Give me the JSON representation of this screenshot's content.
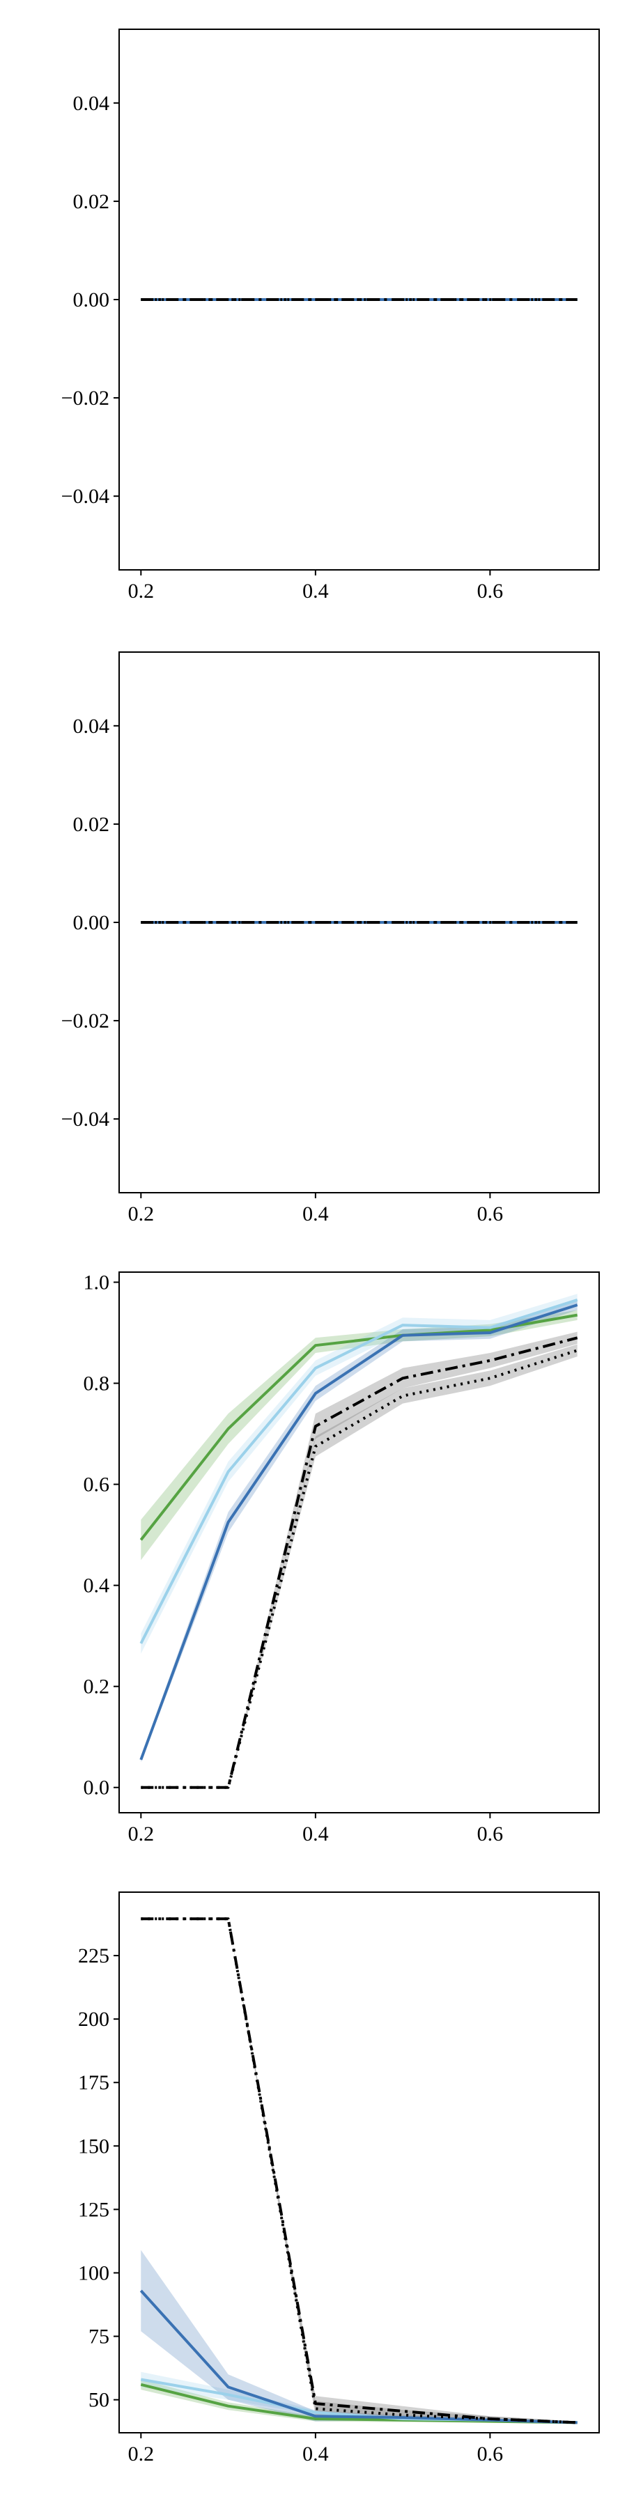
{
  "chart_data": [
    {
      "type": "line",
      "title": "",
      "xlabel": "",
      "ylabel": "",
      "grid": false,
      "legend": "none",
      "x": [
        0.2,
        0.3,
        0.4,
        0.5,
        0.6,
        0.7
      ],
      "xlim": [
        0.175,
        0.725
      ],
      "ylim": [
        -0.055,
        0.055
      ],
      "xticks": [
        0.2,
        0.4,
        0.6
      ],
      "xtick_labels": [
        "0.2",
        "0.4",
        "0.6"
      ],
      "yticks": [
        -0.04,
        -0.02,
        0.0,
        0.02,
        0.04
      ],
      "ytick_labels": [
        "−0.04",
        "−0.02",
        "0.00",
        "0.02",
        "0.04"
      ],
      "series": [
        {
          "color": "#56a343",
          "style": "solid",
          "values": [
            0,
            0,
            0,
            0,
            0,
            0
          ],
          "band": [
            0,
            0,
            0,
            0,
            0,
            0
          ]
        },
        {
          "color": "#9bd1ea",
          "style": "solid",
          "values": [
            0,
            0,
            0,
            0,
            0,
            0
          ],
          "band": [
            0,
            0,
            0,
            0,
            0,
            0
          ]
        },
        {
          "color": "#3a72b3",
          "style": "solid",
          "values": [
            0,
            0,
            0,
            0,
            0,
            0
          ],
          "band": [
            0,
            0,
            0,
            0,
            0,
            0
          ]
        },
        {
          "color": "#000000",
          "style": "dotted",
          "values": [
            0,
            0,
            0,
            0,
            0,
            0
          ],
          "band": [
            0,
            0,
            0,
            0,
            0,
            0
          ]
        },
        {
          "color": "#000000",
          "style": "dashdot",
          "values": [
            0,
            0,
            0,
            0,
            0,
            0
          ],
          "band": [
            0,
            0,
            0,
            0,
            0,
            0
          ]
        }
      ]
    },
    {
      "type": "line",
      "title": "",
      "xlabel": "",
      "ylabel": "",
      "grid": false,
      "legend": "none",
      "x": [
        0.2,
        0.3,
        0.4,
        0.5,
        0.6,
        0.7
      ],
      "xlim": [
        0.175,
        0.725
      ],
      "ylim": [
        -0.055,
        0.055
      ],
      "xticks": [
        0.2,
        0.4,
        0.6
      ],
      "xtick_labels": [
        "0.2",
        "0.4",
        "0.6"
      ],
      "yticks": [
        -0.04,
        -0.02,
        0.0,
        0.02,
        0.04
      ],
      "ytick_labels": [
        "−0.04",
        "−0.02",
        "0.00",
        "0.02",
        "0.04"
      ],
      "series": [
        {
          "color": "#56a343",
          "style": "solid",
          "values": [
            0,
            0,
            0,
            0,
            0,
            0
          ],
          "band": [
            0,
            0,
            0,
            0,
            0,
            0
          ]
        },
        {
          "color": "#9bd1ea",
          "style": "solid",
          "values": [
            0,
            0,
            0,
            0,
            0,
            0
          ],
          "band": [
            0,
            0,
            0,
            0,
            0,
            0
          ]
        },
        {
          "color": "#3a72b3",
          "style": "solid",
          "values": [
            0,
            0,
            0,
            0,
            0,
            0
          ],
          "band": [
            0,
            0,
            0,
            0,
            0,
            0
          ]
        },
        {
          "color": "#000000",
          "style": "dotted",
          "values": [
            0,
            0,
            0,
            0,
            0,
            0
          ],
          "band": [
            0,
            0,
            0,
            0,
            0,
            0
          ]
        },
        {
          "color": "#000000",
          "style": "dashdot",
          "values": [
            0,
            0,
            0,
            0,
            0,
            0
          ],
          "band": [
            0,
            0,
            0,
            0,
            0,
            0
          ]
        }
      ]
    },
    {
      "type": "line",
      "title": "",
      "xlabel": "",
      "ylabel": "",
      "grid": false,
      "legend": "none",
      "x": [
        0.2,
        0.3,
        0.4,
        0.5,
        0.6,
        0.7
      ],
      "xlim": [
        0.175,
        0.725
      ],
      "ylim": [
        -0.05,
        1.02
      ],
      "xticks": [
        0.2,
        0.4,
        0.6
      ],
      "xtick_labels": [
        "0.2",
        "0.4",
        "0.6"
      ],
      "yticks": [
        0.0,
        0.2,
        0.4,
        0.6,
        0.8,
        1.0
      ],
      "ytick_labels": [
        "0.0",
        "0.2",
        "0.4",
        "0.6",
        "0.8",
        "1.0"
      ],
      "series": [
        {
          "color": "#56a343",
          "style": "solid",
          "values": [
            0.49,
            0.71,
            0.875,
            0.895,
            0.905,
            0.935
          ],
          "band": [
            0.04,
            0.03,
            0.015,
            0.012,
            0.012,
            0.01
          ]
        },
        {
          "color": "#9bd1ea",
          "style": "solid",
          "values": [
            0.285,
            0.625,
            0.83,
            0.915,
            0.91,
            0.965
          ],
          "band": [
            0.02,
            0.02,
            0.015,
            0.015,
            0.015,
            0.012
          ]
        },
        {
          "color": "#3a72b3",
          "style": "solid",
          "values": [
            0.055,
            0.525,
            0.78,
            0.895,
            0.9,
            0.955
          ],
          "band": [
            0.005,
            0.02,
            0.015,
            0.012,
            0.012,
            0.01
          ]
        },
        {
          "color": "#000000",
          "style": "dotted",
          "values": [
            0.0,
            0.0,
            0.675,
            0.775,
            0.81,
            0.865
          ],
          "band": [
            0,
            0,
            0.02,
            0.015,
            0.015,
            0.012
          ]
        },
        {
          "color": "#000000",
          "style": "dashdot",
          "values": [
            0.0,
            0.0,
            0.715,
            0.81,
            0.845,
            0.89
          ],
          "band": [
            0,
            0,
            0.025,
            0.02,
            0.015,
            0.012
          ]
        }
      ]
    },
    {
      "type": "line",
      "title": "",
      "xlabel": "",
      "ylabel": "",
      "grid": false,
      "legend": "none",
      "x": [
        0.2,
        0.3,
        0.4,
        0.5,
        0.6,
        0.7
      ],
      "xlim": [
        0.175,
        0.725
      ],
      "ylim": [
        37,
        250
      ],
      "xticks": [
        0.2,
        0.4,
        0.6
      ],
      "xtick_labels": [
        "0.2",
        "0.4",
        "0.6"
      ],
      "yticks": [
        50,
        75,
        100,
        125,
        150,
        175,
        200,
        225
      ],
      "ytick_labels": [
        "50",
        "75",
        "100",
        "125",
        "150",
        "175",
        "200",
        "225"
      ],
      "series": [
        {
          "color": "#56a343",
          "style": "solid",
          "values": [
            56,
            47.5,
            42.5,
            42,
            41.5,
            41
          ],
          "band": [
            2,
            1.5,
            1,
            0.8,
            0.5,
            0.5
          ]
        },
        {
          "color": "#9bd1ea",
          "style": "solid",
          "values": [
            58,
            52,
            45,
            42.5,
            42,
            41
          ],
          "band": [
            3,
            2,
            1,
            1,
            0.5,
            0.5
          ]
        },
        {
          "color": "#3a72b3",
          "style": "solid",
          "values": [
            93,
            55,
            43.5,
            43,
            42,
            41
          ],
          "band": [
            16,
            5,
            2,
            1,
            0.5,
            0.5
          ]
        },
        {
          "color": "#000000",
          "style": "dotted",
          "values": [
            239.5,
            239.5,
            46.5,
            44,
            42.5,
            41
          ],
          "band": [
            0,
            0,
            3,
            2,
            1,
            0.5
          ]
        },
        {
          "color": "#000000",
          "style": "dashdot",
          "values": [
            239.5,
            239.5,
            48.5,
            45.5,
            42.5,
            41
          ],
          "band": [
            0,
            0,
            3,
            2,
            1,
            0.5
          ]
        }
      ]
    }
  ]
}
